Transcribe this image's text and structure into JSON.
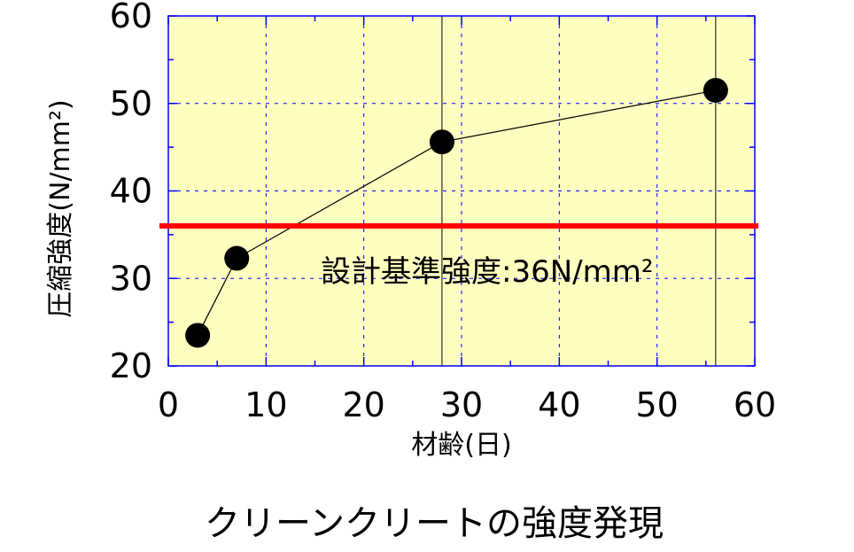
{
  "chart_data": {
    "type": "line",
    "caption": "クリーンクリートの強度発現",
    "xlabel": "材齢(日)",
    "ylabel": "圧縮強度(N/mm²)",
    "xlim": [
      0,
      60
    ],
    "ylim": [
      20,
      60
    ],
    "xticks": [
      0,
      10,
      20,
      30,
      40,
      50,
      60
    ],
    "yticks": [
      20,
      30,
      40,
      50,
      60
    ],
    "grid": true,
    "plot_background": "#ffffc0",
    "grid_color": "#0000ff",
    "series": [
      {
        "x": [
          3,
          7,
          28,
          56
        ],
        "y": [
          23.5,
          32.3,
          45.6,
          51.5
        ],
        "color": "#000000"
      }
    ],
    "emphasized_x": [
      28,
      56
    ],
    "reference_line": {
      "y": 36,
      "color": "#ff0000",
      "label": "設計基準強度:36N/mm²"
    }
  }
}
